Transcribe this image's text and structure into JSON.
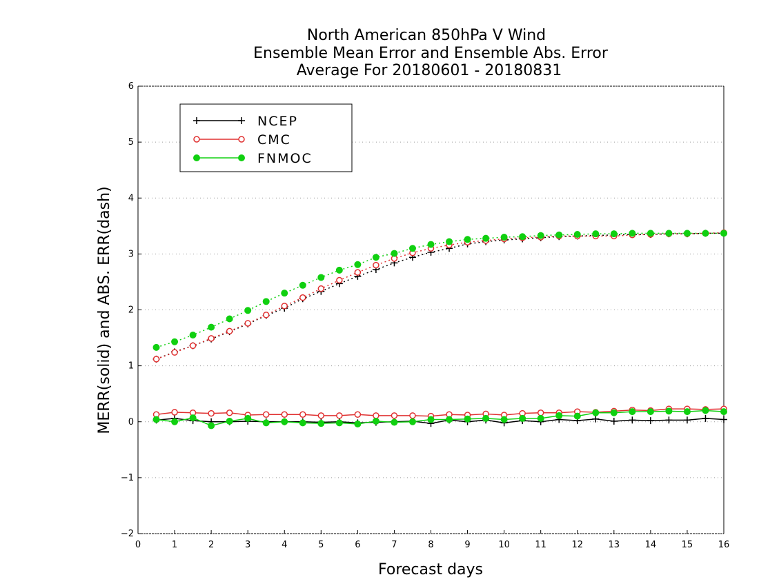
{
  "chart_data": {
    "type": "line",
    "title": [
      "North American 850hPa V Wind",
      "Ensemble Mean Error and Ensemble Abs. Error",
      "Average For 20180601 - 20180831"
    ],
    "xlabel": "Forecast days",
    "ylabel": "MERR(solid) and ABS. ERR(dash)",
    "xlim": [
      0,
      16
    ],
    "ylim": [
      -2,
      6
    ],
    "xticks": [
      0,
      1,
      2,
      3,
      4,
      5,
      6,
      7,
      8,
      9,
      10,
      11,
      12,
      13,
      14,
      15,
      16
    ],
    "yticks": [
      -2,
      -1,
      0,
      1,
      2,
      3,
      4,
      5,
      6
    ],
    "ytick_labels": [
      "−2",
      "−1",
      "0",
      "1",
      "2",
      "3",
      "4",
      "5",
      "6"
    ],
    "grid": "horizontal dotted",
    "legend_position": "top-left",
    "x": [
      0.5,
      1,
      1.5,
      2,
      2.5,
      3,
      3.5,
      4,
      4.5,
      5,
      5.5,
      6,
      6.5,
      7,
      7.5,
      8,
      8.5,
      9,
      9.5,
      10,
      10.5,
      11,
      11.5,
      12,
      12.5,
      13,
      13.5,
      14,
      14.5,
      15,
      15.5,
      16
    ],
    "series": [
      {
        "name": "NCEP",
        "color": "#000000",
        "marker": "plus",
        "merr": [
          0.03,
          0.06,
          0.02,
          0.0,
          0.0,
          0.01,
          0.0,
          0.0,
          0.0,
          -0.01,
          0.0,
          -0.02,
          -0.01,
          0.0,
          0.01,
          -0.03,
          0.03,
          0.0,
          0.03,
          -0.02,
          0.02,
          0.0,
          0.04,
          0.02,
          0.05,
          0.01,
          0.03,
          0.02,
          0.03,
          0.03,
          0.06,
          0.04
        ],
        "abs_err": [
          1.12,
          1.25,
          1.36,
          1.48,
          1.61,
          1.75,
          1.9,
          2.03,
          2.2,
          2.33,
          2.47,
          2.6,
          2.72,
          2.84,
          2.94,
          3.03,
          3.1,
          3.18,
          3.22,
          3.25,
          3.27,
          3.29,
          3.31,
          3.32,
          3.33,
          3.34,
          3.35,
          3.35,
          3.36,
          3.36,
          3.37,
          3.37
        ]
      },
      {
        "name": "CMC",
        "color": "#e03030",
        "marker": "open-circle",
        "merr": [
          0.13,
          0.17,
          0.16,
          0.15,
          0.16,
          0.12,
          0.13,
          0.13,
          0.13,
          0.11,
          0.11,
          0.13,
          0.11,
          0.11,
          0.11,
          0.1,
          0.13,
          0.12,
          0.14,
          0.12,
          0.15,
          0.16,
          0.16,
          0.18,
          0.17,
          0.19,
          0.21,
          0.2,
          0.23,
          0.23,
          0.22,
          0.23
        ],
        "abs_err": [
          1.12,
          1.24,
          1.36,
          1.49,
          1.62,
          1.76,
          1.91,
          2.07,
          2.22,
          2.38,
          2.53,
          2.67,
          2.8,
          2.92,
          3.02,
          3.1,
          3.16,
          3.21,
          3.24,
          3.27,
          3.29,
          3.3,
          3.32,
          3.32,
          3.32,
          3.32,
          3.34,
          3.35,
          3.36,
          3.36,
          3.37,
          3.38
        ]
      },
      {
        "name": "FNMOC",
        "color": "#10d010",
        "marker": "filled-circle",
        "merr": [
          0.04,
          0.0,
          0.07,
          -0.07,
          0.01,
          0.06,
          -0.02,
          0.0,
          -0.02,
          -0.03,
          -0.02,
          -0.04,
          0.01,
          -0.01,
          0.0,
          0.04,
          0.04,
          0.05,
          0.06,
          0.04,
          0.06,
          0.06,
          0.11,
          0.1,
          0.16,
          0.16,
          0.18,
          0.18,
          0.19,
          0.18,
          0.2,
          0.18
        ],
        "abs_err": [
          1.33,
          1.43,
          1.55,
          1.69,
          1.84,
          1.99,
          2.15,
          2.3,
          2.44,
          2.58,
          2.71,
          2.81,
          2.94,
          3.01,
          3.1,
          3.17,
          3.22,
          3.26,
          3.28,
          3.3,
          3.31,
          3.33,
          3.34,
          3.35,
          3.36,
          3.36,
          3.37,
          3.37,
          3.37,
          3.37,
          3.37,
          3.37
        ]
      }
    ]
  }
}
